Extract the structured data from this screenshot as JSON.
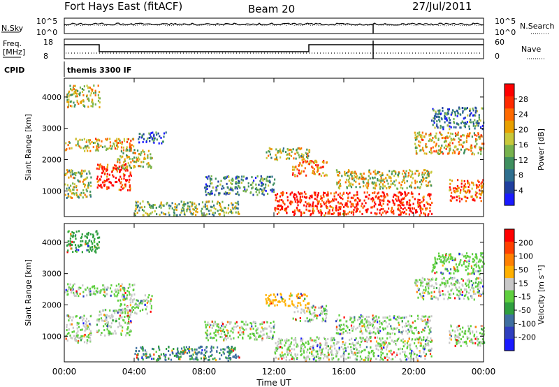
{
  "header": {
    "title": "Fort Hays East (fitACF)",
    "beam": "Beam 20",
    "date": "27/Jul/2011"
  },
  "noise_panel": {
    "left_label": "N.Sky",
    "left_ticks": [
      "10^5",
      "10^0"
    ],
    "right_ticks": [
      "10^5",
      "10^0"
    ],
    "right_label": "N.Search"
  },
  "freq_panel": {
    "left_label_1": "Freq.",
    "left_label_2": "[MHz]",
    "left_ticks": [
      "18",
      "8"
    ],
    "right_ticks": [
      "60",
      "0"
    ],
    "right_label": "Nave"
  },
  "cpid_panel": {
    "label": "CPID",
    "mode_text": "themis 3300 IF"
  },
  "colors": {
    "power": [
      "#1a1aff",
      "#1f3f9f",
      "#2f6f8f",
      "#3f8f5f",
      "#77b24d",
      "#c8c83a",
      "#e8a000",
      "#ff6a00",
      "#ff2a00",
      "#ff0000"
    ],
    "velocity": [
      "#1a1aff",
      "#2f3fbf",
      "#3f6fa0",
      "#2f9f3f",
      "#5fcf3f",
      "#c8c8c8",
      "#ffb000",
      "#ff8000",
      "#ff4000",
      "#ff0000"
    ]
  },
  "chart_data": [
    {
      "type": "heatmap",
      "ylabel": "Slant Range [km]",
      "xlabel": "Time UT",
      "xlim": [
        0,
        24
      ],
      "ylim": [
        180,
        4600
      ],
      "x_tick_values": [
        0,
        4,
        8,
        12,
        16,
        20,
        24
      ],
      "x_tick_labels": [
        "00:00",
        "04:00",
        "08:00",
        "12:00",
        "16:00",
        "20:00",
        "00:00"
      ],
      "y_ticks": [
        1000,
        2000,
        3000,
        4000
      ],
      "y_tick_labels": [
        "1000",
        "2000",
        "3000",
        "4000"
      ],
      "colorbar": {
        "label": "Power [dB]",
        "range": [
          0,
          32
        ],
        "ticks": [
          4,
          8,
          12,
          16,
          20,
          24,
          28
        ],
        "tick_labels": [
          "4",
          "8",
          "12",
          "16",
          "20",
          "24",
          "28"
        ]
      },
      "regions": [
        {
          "t": [
            0.1,
            2.0
          ],
          "r": [
            3700,
            4400
          ],
          "level": 0.55
        },
        {
          "t": [
            0.0,
            4.0
          ],
          "r": [
            2300,
            2700
          ],
          "level": 0.6
        },
        {
          "t": [
            0.0,
            1.5
          ],
          "r": [
            800,
            1700
          ],
          "level": 0.5
        },
        {
          "t": [
            1.8,
            3.8
          ],
          "r": [
            1050,
            1900
          ],
          "level": 0.9
        },
        {
          "t": [
            3.0,
            5.0
          ],
          "r": [
            1750,
            2350
          ],
          "level": 0.55
        },
        {
          "t": [
            4.2,
            5.8
          ],
          "r": [
            2550,
            2900
          ],
          "level": 0.2
        },
        {
          "t": [
            4.0,
            10.0
          ],
          "r": [
            250,
            700
          ],
          "level": 0.45
        },
        {
          "t": [
            8.0,
            12.0
          ],
          "r": [
            900,
            1500
          ],
          "level": 0.3
        },
        {
          "t": [
            11.5,
            14.0
          ],
          "r": [
            2000,
            2400
          ],
          "level": 0.5
        },
        {
          "t": [
            13.0,
            15.0
          ],
          "r": [
            1500,
            2000
          ],
          "level": 0.75
        },
        {
          "t": [
            12.0,
            21.0
          ],
          "r": [
            250,
            1000
          ],
          "level": 0.92
        },
        {
          "t": [
            15.5,
            21.0
          ],
          "r": [
            1100,
            1700
          ],
          "level": 0.55
        },
        {
          "t": [
            20.0,
            24.0
          ],
          "r": [
            2200,
            2900
          ],
          "level": 0.6
        },
        {
          "t": [
            21.0,
            24.0
          ],
          "r": [
            3000,
            3700
          ],
          "level": 0.3
        },
        {
          "t": [
            22.0,
            24.0
          ],
          "r": [
            700,
            1400
          ],
          "level": 0.8
        }
      ]
    },
    {
      "type": "heatmap",
      "ylabel": "Slant Range [km]",
      "xlabel": "Time UT",
      "xlim": [
        0,
        24
      ],
      "ylim": [
        180,
        4600
      ],
      "x_tick_values": [
        0,
        4,
        8,
        12,
        16,
        20,
        24
      ],
      "x_tick_labels": [
        "00:00",
        "04:00",
        "08:00",
        "12:00",
        "16:00",
        "20:00",
        "00:00"
      ],
      "y_ticks": [
        1000,
        2000,
        3000,
        4000
      ],
      "y_tick_labels": [
        "1000",
        "2000",
        "3000",
        "4000"
      ],
      "colorbar": {
        "label": "Velocity [m s⁻¹]",
        "range": [
          -250,
          250
        ],
        "ticks": [
          200,
          100,
          50,
          15,
          -15,
          -50,
          -100,
          -200
        ],
        "tick_labels": [
          "200",
          "100",
          "50",
          "15",
          "-15",
          "-50",
          "-100",
          "-200"
        ]
      },
      "regions": [
        {
          "t": [
            0.1,
            2.0
          ],
          "r": [
            3700,
            4400
          ],
          "level": 0.35
        },
        {
          "t": [
            0.0,
            4.0
          ],
          "r": [
            2300,
            2700
          ],
          "level": 0.5
        },
        {
          "t": [
            0.0,
            1.5
          ],
          "r": [
            800,
            1700
          ],
          "level": 0.5
        },
        {
          "t": [
            1.8,
            3.8
          ],
          "r": [
            1050,
            1900
          ],
          "level": 0.5
        },
        {
          "t": [
            3.0,
            5.0
          ],
          "r": [
            1750,
            2350
          ],
          "level": 0.5
        },
        {
          "t": [
            4.0,
            10.0
          ],
          "r": [
            250,
            700
          ],
          "level": 0.3
        },
        {
          "t": [
            8.0,
            12.0
          ],
          "r": [
            900,
            1500
          ],
          "level": 0.5
        },
        {
          "t": [
            11.5,
            14.0
          ],
          "r": [
            2000,
            2400
          ],
          "level": 0.65
        },
        {
          "t": [
            13.0,
            15.0
          ],
          "r": [
            1500,
            2000
          ],
          "level": 0.5
        },
        {
          "t": [
            12.0,
            21.0
          ],
          "r": [
            250,
            1000
          ],
          "level": 0.5
        },
        {
          "t": [
            15.5,
            21.0
          ],
          "r": [
            1100,
            1700
          ],
          "level": 0.5
        },
        {
          "t": [
            20.0,
            24.0
          ],
          "r": [
            2200,
            2900
          ],
          "level": 0.5
        },
        {
          "t": [
            21.0,
            24.0
          ],
          "r": [
            3000,
            3700
          ],
          "level": 0.45
        },
        {
          "t": [
            22.0,
            24.0
          ],
          "r": [
            700,
            1400
          ],
          "level": 0.5
        }
      ]
    }
  ]
}
